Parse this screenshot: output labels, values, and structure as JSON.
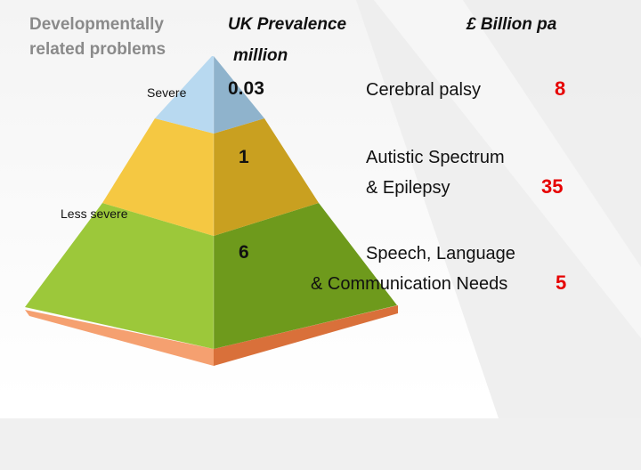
{
  "header": {
    "left_line1": "Developmentally",
    "left_line2": "related problems",
    "prevalence_line1": "UK Prevalence",
    "prevalence_line2": "million",
    "cost": "£ Billion pa"
  },
  "levels": {
    "top": "Severe",
    "bottom": "Less severe"
  },
  "tiers": [
    {
      "prevalence": "0.03",
      "condition_lines": [
        "Cerebral palsy"
      ],
      "cost": "8",
      "color_front": "#b8d9f0",
      "color_side": "#8fb3cc"
    },
    {
      "prevalence": "1",
      "condition_lines": [
        "Autistic Spectrum",
        "& Epilepsy"
      ],
      "cost": "35",
      "color_front": "#f5c842",
      "color_side": "#c9a020"
    },
    {
      "prevalence": "6",
      "condition_lines": [
        "Speech, Language",
        "& Communication Needs"
      ],
      "cost": "5",
      "color_front": "#9cc83a",
      "color_side": "#6e9a1c"
    }
  ],
  "base": {
    "color_front": "#f5a070",
    "color_side": "#d9703a"
  },
  "cost_color": "#e60000"
}
